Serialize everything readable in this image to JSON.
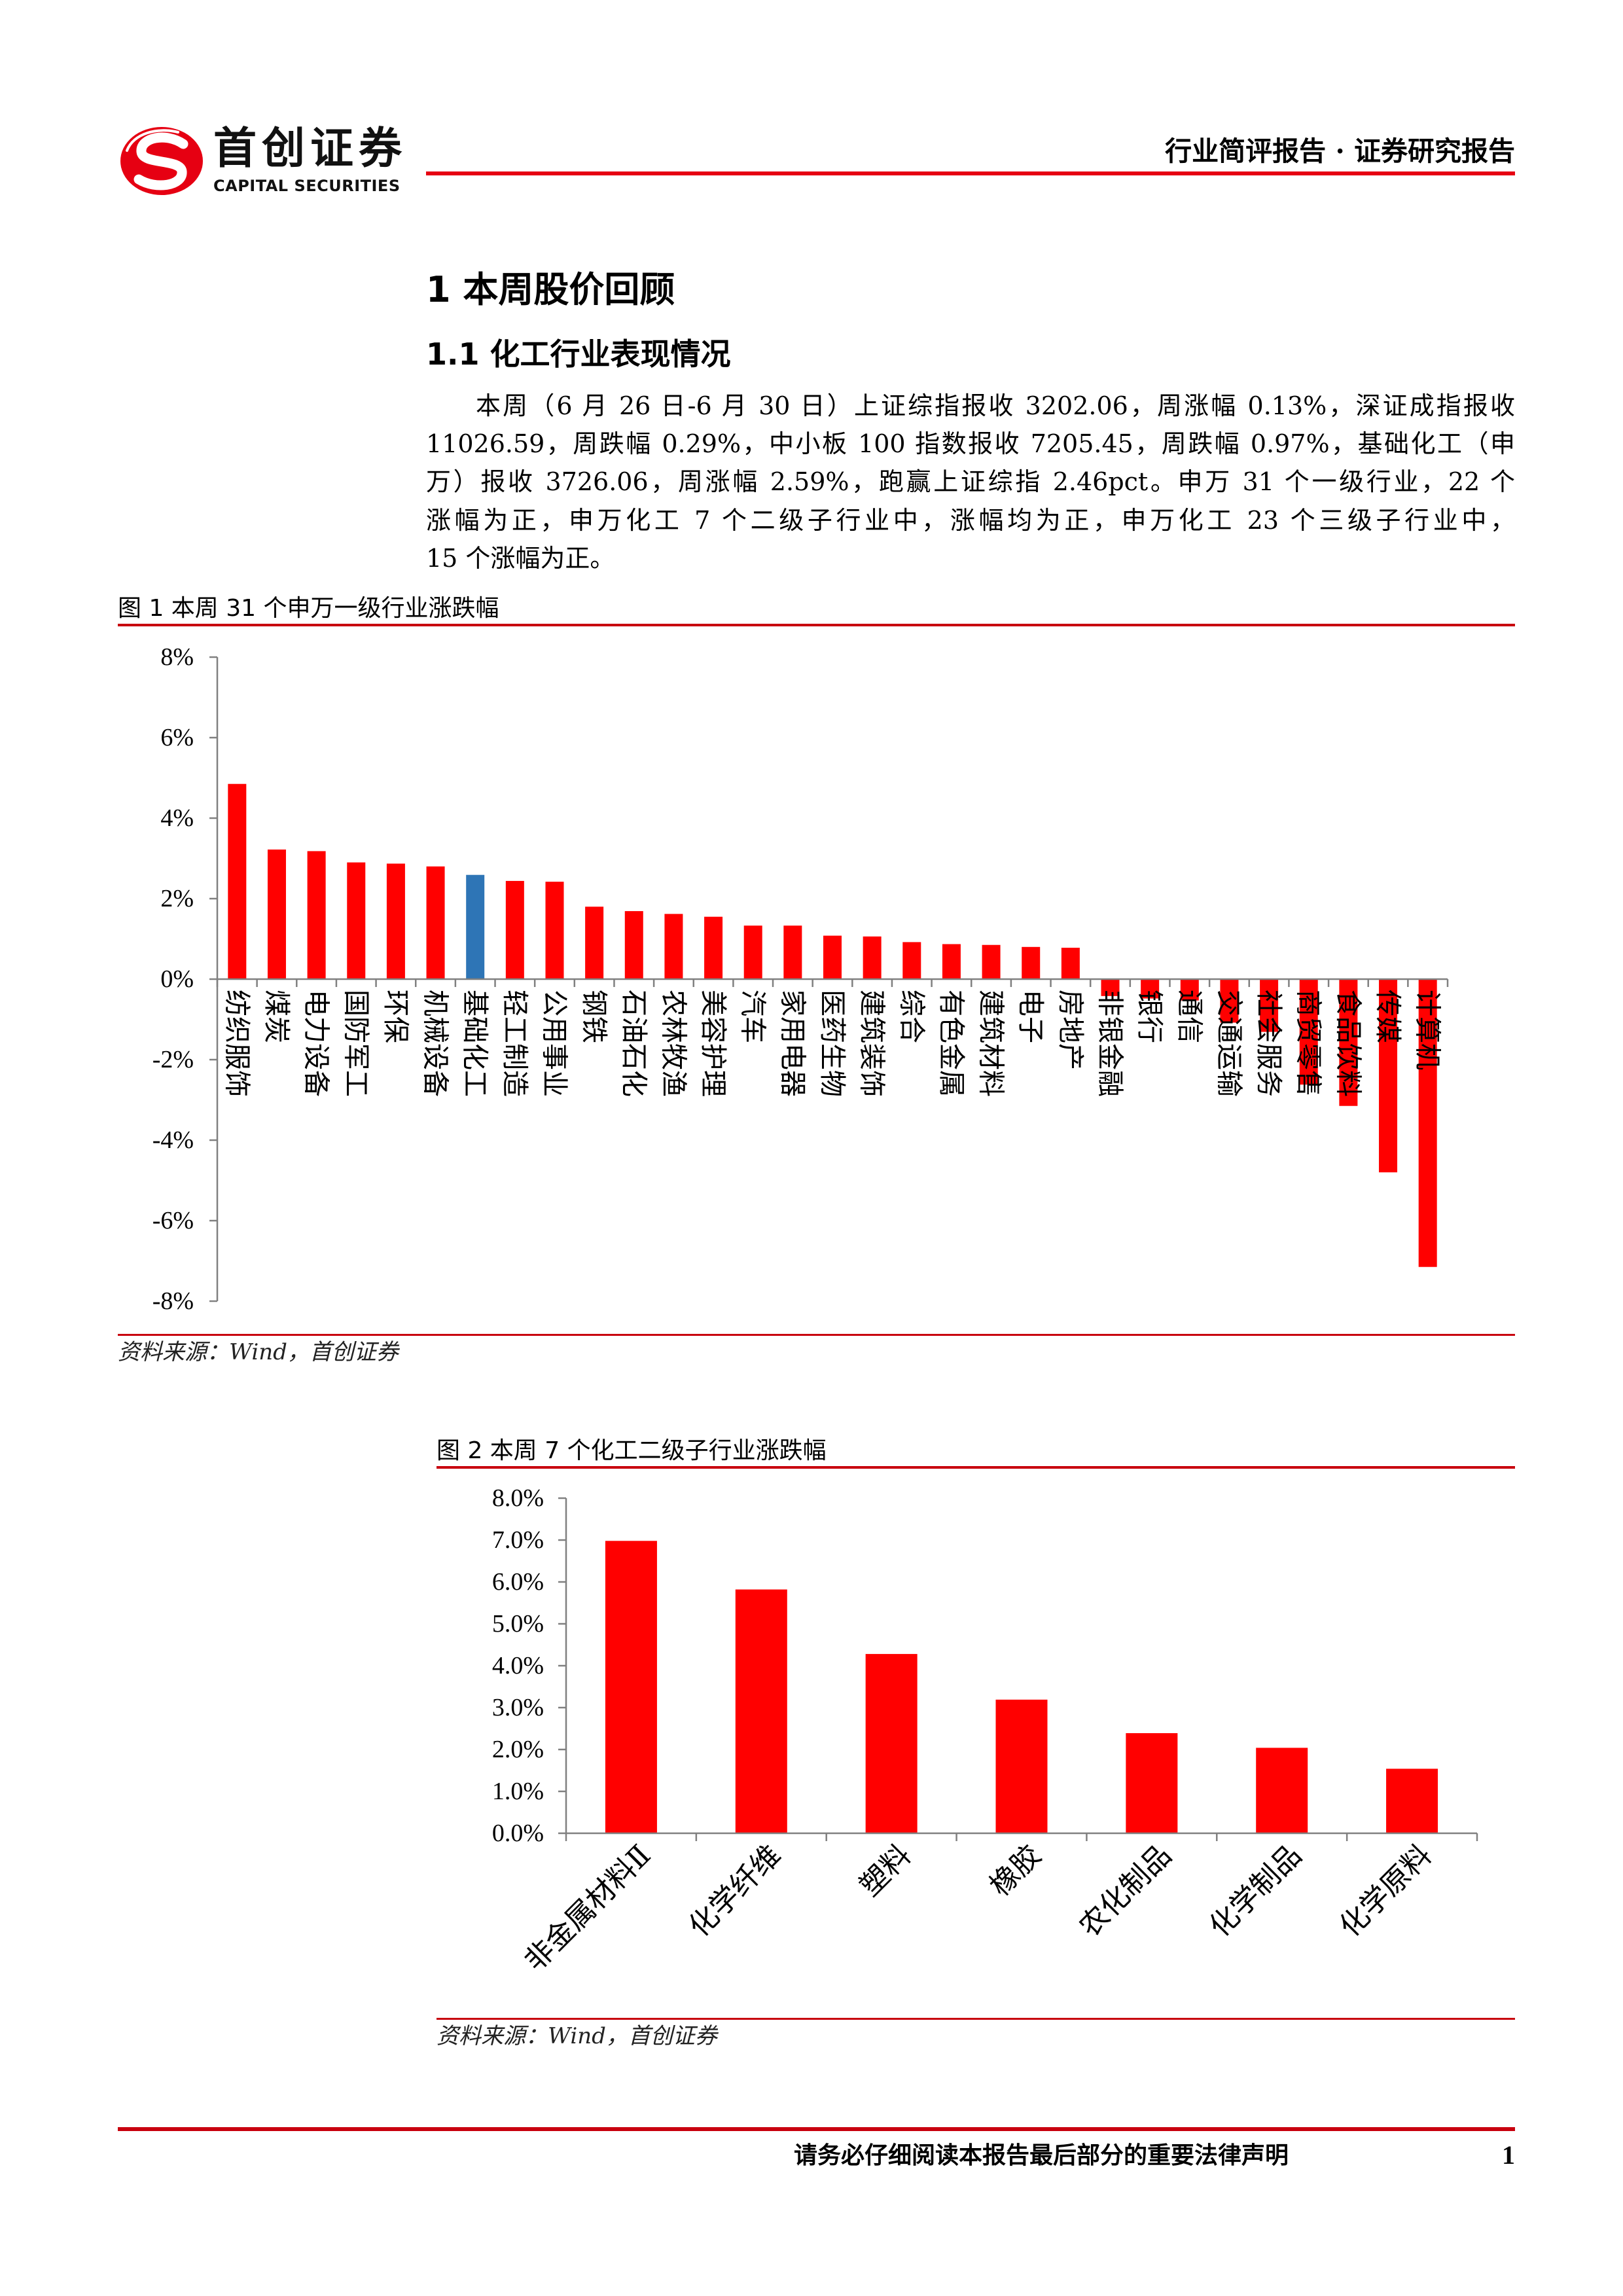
{
  "colors": {
    "brand": "#E60012",
    "rule": "#C8000E"
  },
  "header": {
    "logo_icon": "capital-securities-logo-icon",
    "brand_name": "首创证券",
    "brand_name_en": "CAPITAL SECURITIES",
    "report_type": "行业简评报告 · 证券研究报告"
  },
  "body": {
    "section_title": "1 本周股价回顾",
    "subsection_title": "1.1 化工行业表现情况",
    "paragraph_lines": [
      "本周（6 月 26 日-6 月 30 日）上证综指报收 3202.06，周涨幅 0.13%，深证成指报收",
      "11026.59，周跌幅 0.29%，中小板 100 指数报收 7205.45，周跌幅 0.97%，基础化工（申",
      "万）报收 3726.06，周涨幅 2.59%，跑赢上证综指 2.46pct。申万 31 个一级行业，22 个",
      "涨幅为正，申万化工 7 个二级子行业中，涨幅均为正，申万化工 23 个三级子行业中，",
      "15 个涨幅为正。"
    ]
  },
  "chart_data": [
    {
      "type": "bar",
      "title": "图 1 本周 31 个申万一级行业涨跌幅",
      "source": "资料来源：Wind，首创证券",
      "categories": [
        "纺织服饰",
        "煤炭",
        "电力设备",
        "国防军工",
        "环保",
        "机械设备",
        "基础化工",
        "轻工制造",
        "公用事业",
        "钢铁",
        "石油石化",
        "农林牧渔",
        "美容护理",
        "汽车",
        "家用电器",
        "医药生物",
        "建筑装饰",
        "综合",
        "有色金属",
        "建筑材料",
        "电子",
        "房地产",
        "非银金融",
        "银行",
        "通信",
        "交通运输",
        "社会服务",
        "商贸零售",
        "食品饮料",
        "传媒",
        "计算机"
      ],
      "values": [
        4.85,
        3.22,
        3.18,
        2.9,
        2.87,
        2.8,
        2.59,
        2.44,
        2.42,
        1.8,
        1.69,
        1.62,
        1.55,
        1.33,
        1.33,
        1.08,
        1.06,
        0.92,
        0.87,
        0.85,
        0.8,
        0.78,
        -0.42,
        -0.48,
        -0.53,
        -1.08,
        -1.31,
        -2.62,
        -3.15,
        -4.8,
        -7.15
      ],
      "ylim": [
        -8,
        8
      ],
      "yticks": [
        8,
        6,
        4,
        2,
        0,
        -2,
        -4,
        -6,
        -8
      ],
      "ytick_labels": [
        "8%",
        "6%",
        "4%",
        "2%",
        "0%",
        "-2%",
        "-4%",
        "-6%",
        "-8%"
      ],
      "grid": false,
      "legend": false,
      "bar_colors": [
        "#FF0000",
        "#FF0000",
        "#FF0000",
        "#FF0000",
        "#FF0000",
        "#FF0000",
        "#2E75B6",
        "#FF0000",
        "#FF0000",
        "#FF0000",
        "#FF0000",
        "#FF0000",
        "#FF0000",
        "#FF0000",
        "#FF0000",
        "#FF0000",
        "#FF0000",
        "#FF0000",
        "#FF0000",
        "#FF0000",
        "#FF0000",
        "#FF0000",
        "#FF0000",
        "#FF0000",
        "#FF0000",
        "#FF0000",
        "#FF0000",
        "#FF0000",
        "#FF0000",
        "#FF0000",
        "#FF0000"
      ]
    },
    {
      "type": "bar",
      "title": "图 2 本周 7 个化工二级子行业涨跌幅",
      "source": "资料来源：Wind，首创证券",
      "categories": [
        "非金属材料Ⅱ",
        "化学纤维",
        "塑料",
        "橡胶",
        "农化制品",
        "化学制品",
        "化学原料"
      ],
      "values": [
        6.98,
        5.82,
        4.28,
        3.19,
        2.39,
        2.04,
        1.54
      ],
      "ylim": [
        0,
        8
      ],
      "yticks": [
        8,
        7,
        6,
        5,
        4,
        3,
        2,
        1,
        0
      ],
      "ytick_labels": [
        "8.0%",
        "7.0%",
        "6.0%",
        "5.0%",
        "4.0%",
        "3.0%",
        "2.0%",
        "1.0%",
        "0.0%"
      ],
      "grid": false,
      "legend": false,
      "bar_color": "#FF0000"
    }
  ],
  "footer": {
    "disclaimer": "请务必仔细阅读本报告最后部分的重要法律声明",
    "page_number": "1"
  }
}
